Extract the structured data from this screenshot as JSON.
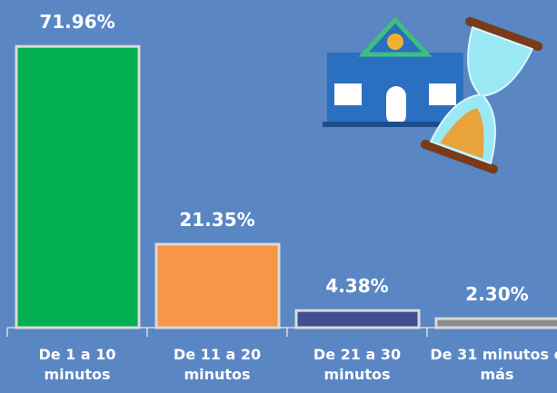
{
  "chart_data": {
    "type": "bar",
    "categories": [
      "De 1 a 10 minutos",
      "De 11 a 20 minutos",
      "De 21 a 30 minutos",
      "De 31 minutos o más"
    ],
    "values": [
      71.96,
      21.35,
      4.38,
      2.3
    ],
    "value_labels": [
      "71.96%",
      "21.35%",
      "4.38%",
      "2.30%"
    ],
    "colors": [
      "#00b050",
      "#f79646",
      "#3f4f8f",
      "#8c8c8c"
    ]
  }
}
